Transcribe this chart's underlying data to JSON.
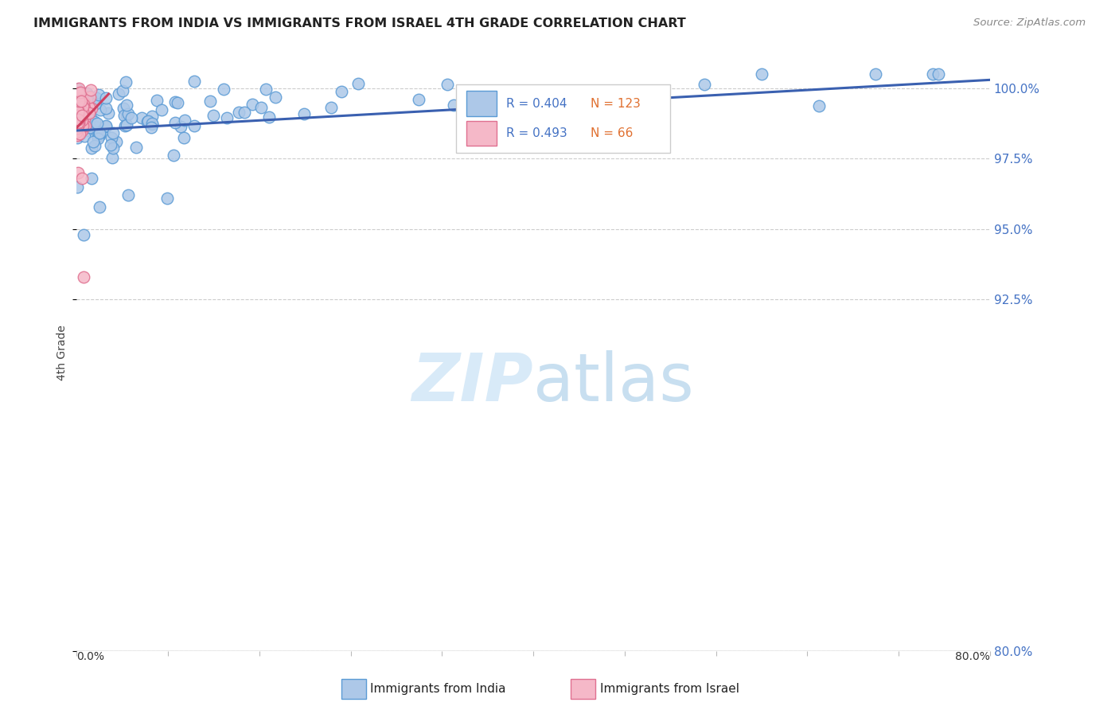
{
  "title": "IMMIGRANTS FROM INDIA VS IMMIGRANTS FROM ISRAEL 4TH GRADE CORRELATION CHART",
  "source": "Source: ZipAtlas.com",
  "ylabel": "4th Grade",
  "y_ticks": [
    80.0,
    92.5,
    95.0,
    97.5,
    100.0
  ],
  "x_range": [
    0.0,
    80.0
  ],
  "y_range": [
    80.0,
    101.2
  ],
  "india_R": 0.404,
  "india_N": 123,
  "israel_R": 0.493,
  "israel_N": 66,
  "india_color": "#adc8e8",
  "israel_color": "#f5b8c8",
  "india_edge_color": "#5b9bd5",
  "israel_edge_color": "#e07090",
  "trendline_india_color": "#3a60b0",
  "trendline_israel_color": "#d04060",
  "watermark_color": "#d8eaf8",
  "title_color": "#222222",
  "source_color": "#888888",
  "right_axis_color": "#4472c4",
  "grid_color": "#cccccc",
  "bottom_line_color": "#999999"
}
